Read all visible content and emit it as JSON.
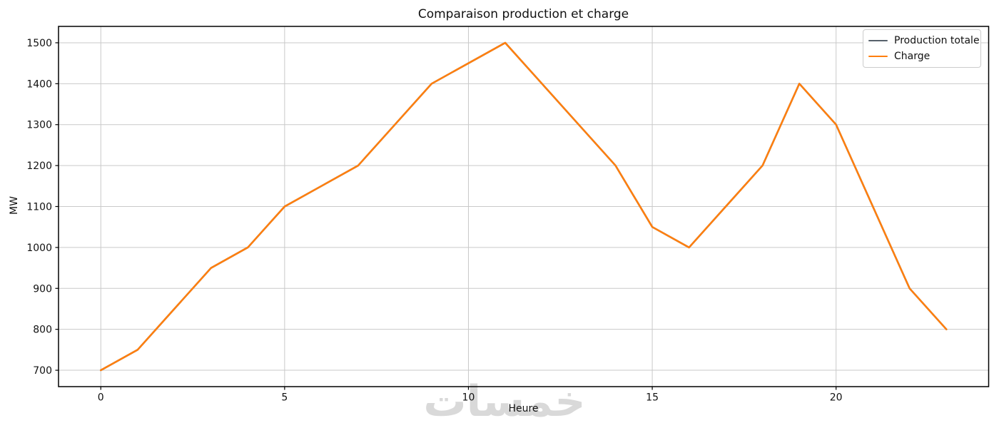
{
  "figure": {
    "title": "Comparaison production et charge"
  },
  "watermark": {
    "text": "خمسات",
    "color": "#d9d9d9"
  },
  "colors": {
    "production_line": "#56606b",
    "charge_line": "#ff7f0e",
    "grid": "#c9c9c9",
    "frame": "#000000",
    "legend_border": "#cccccc"
  },
  "chart_data": {
    "type": "line",
    "title": "Comparaison production et charge",
    "xlabel": "Heure",
    "ylabel": "MW",
    "x": [
      0,
      1,
      2,
      3,
      4,
      5,
      6,
      7,
      8,
      9,
      10,
      11,
      12,
      13,
      14,
      15,
      16,
      17,
      18,
      19,
      20,
      21,
      22,
      23
    ],
    "series": [
      {
        "name": "Production totale",
        "color": "#56606b",
        "values": [
          700,
          750,
          850,
          950,
          1000,
          1100,
          1150,
          1200,
          1300,
          1400,
          1450,
          1500,
          1400,
          1300,
          1200,
          1050,
          1000,
          1100,
          1200,
          1400,
          1300,
          1100,
          900,
          800
        ]
      },
      {
        "name": "Charge",
        "color": "#ff7f0e",
        "values": [
          700,
          750,
          850,
          950,
          1000,
          1100,
          1150,
          1200,
          1300,
          1400,
          1450,
          1500,
          1400,
          1300,
          1200,
          1050,
          1000,
          1100,
          1200,
          1400,
          1300,
          1100,
          900,
          800
        ]
      }
    ],
    "xlim": [
      -1.15,
      24.15
    ],
    "ylim": [
      660,
      1540
    ],
    "xticks": [
      0,
      5,
      10,
      15,
      20
    ],
    "yticks": [
      700,
      800,
      900,
      1000,
      1100,
      1200,
      1300,
      1400,
      1500
    ],
    "grid": true,
    "legend_position": "upper right"
  }
}
